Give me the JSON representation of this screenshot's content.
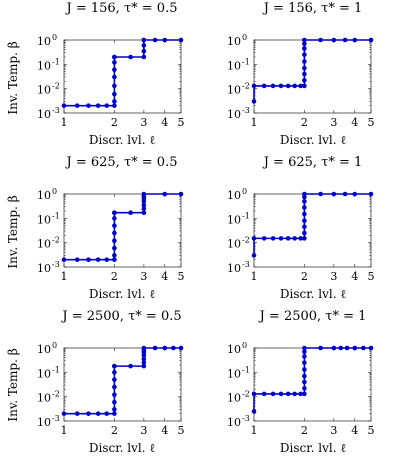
{
  "chart_data": [
    {
      "type": "line",
      "title": "J = 156, τ* = 0.5",
      "xlabel": "Discr. lvl. ℓ",
      "ylabel": "Inv. Temp. β",
      "xlim": [
        1,
        5
      ],
      "ylim": [
        0.001,
        1
      ],
      "yscale": "log",
      "xscale": "log",
      "xticks": [
        "1",
        "2",
        "3",
        "4",
        "5"
      ],
      "yticks": [
        {
          "base": "10",
          "exp": "-3"
        },
        {
          "base": "10",
          "exp": "-2"
        },
        {
          "base": "10",
          "exp": "-1"
        },
        {
          "base": "10",
          "exp": "0"
        }
      ],
      "color": "#0000cc",
      "series": [
        {
          "x": [
            1.0,
            1.2,
            1.4,
            1.6,
            1.8,
            2,
            2,
            2,
            2,
            2,
            2,
            2,
            2,
            2,
            2.5,
            3,
            3,
            3,
            3,
            3,
            3.5,
            4,
            5
          ],
          "y": [
            0.002,
            0.002,
            0.002,
            0.002,
            0.002,
            0.002,
            0.003,
            0.006,
            0.013,
            0.03,
            0.06,
            0.12,
            0.2,
            0.2,
            0.2,
            0.2,
            0.35,
            0.6,
            1,
            1,
            1,
            1,
            1
          ]
        }
      ]
    },
    {
      "type": "line",
      "title": "J = 156, τ* = 1",
      "xlabel": "Discr. lvl. ℓ",
      "ylabel": "",
      "xlim": [
        1,
        5
      ],
      "ylim": [
        0.001,
        1
      ],
      "yscale": "log",
      "xscale": "log",
      "xticks": [
        "1",
        "2",
        "3",
        "4",
        "5"
      ],
      "yticks": [
        {
          "base": "10",
          "exp": "-3"
        },
        {
          "base": "10",
          "exp": "-2"
        },
        {
          "base": "10",
          "exp": "-1"
        },
        {
          "base": "10",
          "exp": "0"
        }
      ],
      "color": "#0000cc",
      "series": [
        {
          "x": [
            1,
            1,
            1.15,
            1.3,
            1.45,
            1.6,
            1.75,
            1.9,
            2,
            2,
            2,
            2,
            2,
            2,
            2,
            2,
            2,
            2.5,
            3,
            3.5,
            4,
            5
          ],
          "y": [
            0.003,
            0.013,
            0.013,
            0.013,
            0.013,
            0.013,
            0.013,
            0.013,
            0.013,
            0.022,
            0.04,
            0.07,
            0.13,
            0.25,
            0.45,
            0.7,
            1,
            1,
            1,
            1,
            1,
            1
          ]
        }
      ]
    },
    {
      "type": "line",
      "title": "J = 625, τ* = 0.5",
      "xlabel": "Discr. lvl. ℓ",
      "ylabel": "Inv. Temp. β",
      "xlim": [
        1,
        5
      ],
      "ylim": [
        0.001,
        1
      ],
      "yscale": "log",
      "xscale": "log",
      "xticks": [
        "1",
        "2",
        "3",
        "4",
        "5"
      ],
      "yticks": [
        {
          "base": "10",
          "exp": "-3"
        },
        {
          "base": "10",
          "exp": "-2"
        },
        {
          "base": "10",
          "exp": "-1"
        },
        {
          "base": "10",
          "exp": "0"
        }
      ],
      "color": "#0000cc",
      "series": [
        {
          "x": [
            1,
            1.2,
            1.4,
            1.6,
            1.8,
            2,
            2,
            2,
            2,
            2,
            2,
            2,
            2,
            2,
            2.5,
            3,
            3,
            3,
            3,
            3,
            3,
            3,
            4,
            5
          ],
          "y": [
            0.002,
            0.002,
            0.002,
            0.002,
            0.002,
            0.002,
            0.003,
            0.006,
            0.012,
            0.025,
            0.05,
            0.1,
            0.17,
            0.17,
            0.17,
            0.17,
            0.25,
            0.35,
            0.5,
            0.65,
            0.8,
            1,
            1,
            1
          ]
        }
      ]
    },
    {
      "type": "line",
      "title": "J = 625, τ* = 1",
      "xlabel": "Discr. lvl. ℓ",
      "ylabel": "",
      "xlim": [
        1,
        5
      ],
      "ylim": [
        0.001,
        1
      ],
      "yscale": "log",
      "xscale": "log",
      "xticks": [
        "1",
        "2",
        "3",
        "4",
        "5"
      ],
      "yticks": [
        {
          "base": "10",
          "exp": "-3"
        },
        {
          "base": "10",
          "exp": "-2"
        },
        {
          "base": "10",
          "exp": "-1"
        },
        {
          "base": "10",
          "exp": "0"
        }
      ],
      "color": "#0000cc",
      "series": [
        {
          "x": [
            1,
            1,
            1.15,
            1.3,
            1.45,
            1.6,
            1.75,
            1.9,
            2,
            2,
            2,
            2,
            2,
            2,
            2,
            2,
            2,
            2.5,
            3,
            3.5,
            4,
            5
          ],
          "y": [
            0.003,
            0.015,
            0.015,
            0.015,
            0.015,
            0.015,
            0.015,
            0.015,
            0.015,
            0.025,
            0.045,
            0.08,
            0.15,
            0.28,
            0.5,
            0.75,
            1,
            1,
            1,
            1,
            1,
            1
          ]
        }
      ]
    },
    {
      "type": "line",
      "title": "J = 2500, τ* = 0.5",
      "xlabel": "Discr. lvl. ℓ",
      "ylabel": "Inv. Temp. β",
      "xlim": [
        1,
        5
      ],
      "ylim": [
        0.001,
        1
      ],
      "yscale": "log",
      "xscale": "log",
      "xticks": [
        "1",
        "2",
        "3",
        "4",
        "5"
      ],
      "yticks": [
        {
          "base": "10",
          "exp": "-3"
        },
        {
          "base": "10",
          "exp": "-2"
        },
        {
          "base": "10",
          "exp": "-1"
        },
        {
          "base": "10",
          "exp": "0"
        }
      ],
      "color": "#0000cc",
      "series": [
        {
          "x": [
            1,
            1.2,
            1.4,
            1.6,
            1.8,
            2,
            2,
            2,
            2,
            2,
            2,
            2,
            2,
            2,
            2.5,
            3,
            3,
            3,
            3,
            3,
            3,
            3,
            3.5,
            4,
            4.5,
            5
          ],
          "y": [
            0.002,
            0.002,
            0.002,
            0.002,
            0.002,
            0.002,
            0.003,
            0.006,
            0.012,
            0.025,
            0.05,
            0.1,
            0.18,
            0.18,
            0.18,
            0.18,
            0.25,
            0.35,
            0.5,
            0.65,
            0.8,
            1,
            1,
            1,
            1,
            1
          ]
        }
      ]
    },
    {
      "type": "line",
      "title": "J = 2500, τ* = 1",
      "xlabel": "Discr. lvl. ℓ",
      "ylabel": "",
      "xlim": [
        1,
        5
      ],
      "ylim": [
        0.001,
        1
      ],
      "yscale": "log",
      "xscale": "log",
      "xticks": [
        "1",
        "2",
        "3",
        "4",
        "5"
      ],
      "yticks": [
        {
          "base": "10",
          "exp": "-3"
        },
        {
          "base": "10",
          "exp": "-2"
        },
        {
          "base": "10",
          "exp": "-1"
        },
        {
          "base": "10",
          "exp": "0"
        }
      ],
      "color": "#0000cc",
      "series": [
        {
          "x": [
            1,
            1,
            1.15,
            1.3,
            1.45,
            1.6,
            1.75,
            1.9,
            2,
            2,
            2,
            2,
            2,
            2,
            2,
            2,
            2,
            2.5,
            3,
            3.3,
            3.6,
            4,
            4.5,
            5
          ],
          "y": [
            0.0025,
            0.013,
            0.013,
            0.013,
            0.013,
            0.013,
            0.013,
            0.013,
            0.013,
            0.022,
            0.04,
            0.07,
            0.13,
            0.25,
            0.45,
            0.7,
            1,
            1,
            1,
            1,
            1,
            1,
            1,
            1
          ]
        }
      ]
    }
  ]
}
